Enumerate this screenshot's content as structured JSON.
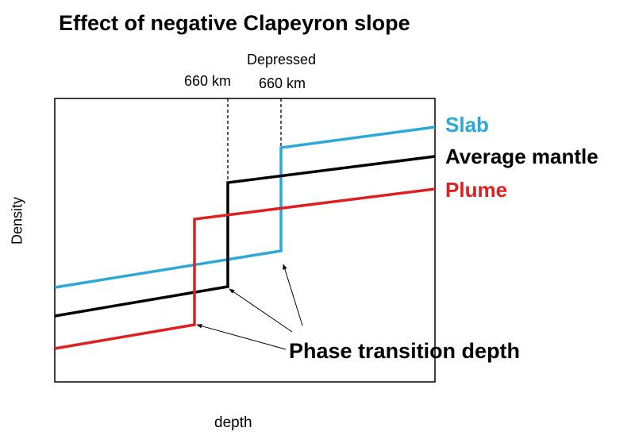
{
  "title": "Effect of negative Clapeyron slope",
  "axes": {
    "x_label": "depth",
    "y_label": "Density"
  },
  "markers": {
    "normal": "660 km",
    "depressed_line1": "Depressed",
    "depressed_line2": "660 km"
  },
  "series": [
    {
      "name": "Slab",
      "color": "#2aa8d8"
    },
    {
      "name": "Average mantle",
      "color": "#000000"
    },
    {
      "name": "Plume",
      "color": "#e02020"
    }
  ],
  "annotation": "Phase transition depth"
}
